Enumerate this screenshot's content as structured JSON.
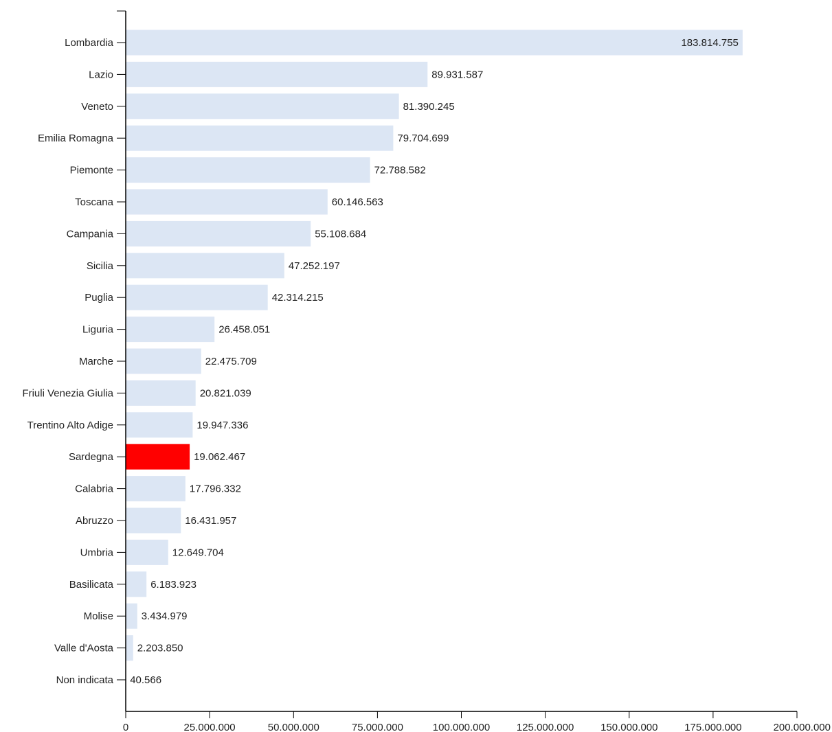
{
  "colors": {
    "bar": "#dce6f4",
    "highlight": "#ff0000",
    "axis": "#000000",
    "text": "#222222"
  },
  "chart_data": {
    "type": "bar",
    "orientation": "horizontal",
    "title": "",
    "xlabel": "",
    "ylabel": "",
    "xlim": [
      0,
      200000000
    ],
    "grid": false,
    "highlighted_category": "Sardegna",
    "categories": [
      "Lombardia",
      "Lazio",
      "Veneto",
      "Emilia Romagna",
      "Piemonte",
      "Toscana",
      "Campania",
      "Sicilia",
      "Puglia",
      "Liguria",
      "Marche",
      "Friuli Venezia Giulia",
      "Trentino Alto Adige",
      "Sardegna",
      "Calabria",
      "Abruzzo",
      "Umbria",
      "Basilicata",
      "Molise",
      "Valle d'Aosta",
      "Non indicata"
    ],
    "values": [
      183814755,
      89931587,
      81390245,
      79704699,
      72788582,
      60146563,
      55108684,
      47252197,
      42314215,
      26458051,
      22475709,
      20821039,
      19947336,
      19062467,
      17796332,
      16431957,
      12649704,
      6183923,
      3434979,
      2203850,
      40566
    ],
    "value_labels": [
      "183.814.755",
      "89.931.587",
      "81.390.245",
      "79.704.699",
      "72.788.582",
      "60.146.563",
      "55.108.684",
      "47.252.197",
      "42.314.215",
      "26.458.051",
      "22.475.709",
      "20.821.039",
      "19.947.336",
      "19.062.467",
      "17.796.332",
      "16.431.957",
      "12.649.704",
      "6.183.923",
      "3.434.979",
      "2.203.850",
      "40.566"
    ],
    "x_ticks": [
      0,
      25000000,
      50000000,
      75000000,
      100000000,
      125000000,
      150000000,
      175000000,
      200000000
    ],
    "x_tick_labels": [
      "0",
      "25.000.000",
      "50.000.000",
      "75.000.000",
      "100.000.000",
      "125.000.000",
      "150.000.000",
      "175.000.000",
      "200.000.000"
    ]
  }
}
